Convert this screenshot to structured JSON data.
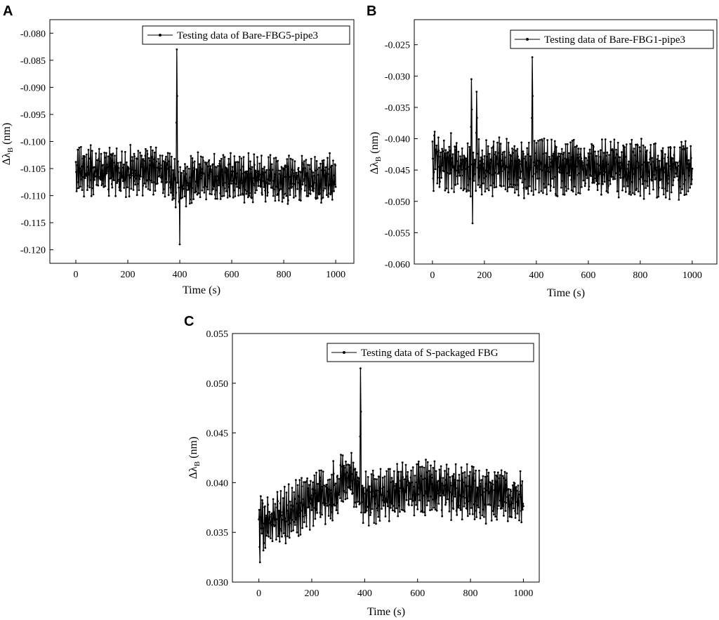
{
  "panels": [
    {
      "letter": "A",
      "legend": "Testing data of Bare-FBG5-pipe3",
      "xlabel": "Time (s)",
      "ylabel_prefix": "Δλ",
      "ylabel_sub": "B",
      "ylabel_suffix": " (nm)"
    },
    {
      "letter": "B",
      "legend": "Testing data of Bare-FBG1-pipe3",
      "xlabel": "Time (s)",
      "ylabel_prefix": "Δλ",
      "ylabel_sub": "B",
      "ylabel_suffix": " (nm)"
    },
    {
      "letter": "C",
      "legend": "Testing data of S-packaged FBG",
      "xlabel": "Time (s)",
      "ylabel_prefix": "Δλ",
      "ylabel_sub": "B",
      "ylabel_suffix": " (nm)"
    }
  ],
  "chart_data": [
    {
      "type": "line",
      "panel": "A",
      "title": "",
      "xlabel": "Time (s)",
      "ylabel": "ΔλB (nm)",
      "xlim": [
        -100,
        1070
      ],
      "ylim": [
        -0.1225,
        -0.0775
      ],
      "xticks": [
        "0",
        "200",
        "400",
        "600",
        "800",
        "1000"
      ],
      "xtick_values": [
        0,
        200,
        400,
        600,
        800,
        1000
      ],
      "yticks": [
        "-0.080",
        "-0.085",
        "-0.090",
        "-0.095",
        "-0.100",
        "-0.105",
        "-0.110",
        "-0.115",
        "-0.120"
      ],
      "ytick_values": [
        -0.08,
        -0.085,
        -0.09,
        -0.095,
        -0.1,
        -0.105,
        -0.11,
        -0.115,
        -0.12
      ],
      "legend_position": "top-right",
      "grid": false,
      "color": "#000000",
      "series": [
        {
          "name": "Testing data of Bare-FBG5-pipe3",
          "x_range": [
            0,
            1000
          ],
          "baseline": -0.1055,
          "amplitude": 0.0045,
          "envelope": [
            [
              0,
              0.0
            ],
            [
              330,
              0.0
            ],
            [
              400,
              -0.0025
            ],
            [
              480,
              -0.001
            ],
            [
              1000,
              -0.0015
            ]
          ],
          "spike": {
            "x": 388,
            "y": -0.083
          },
          "min_point": {
            "x": 400,
            "y": -0.119
          }
        }
      ]
    },
    {
      "type": "line",
      "panel": "B",
      "title": "",
      "xlabel": "Time (s)",
      "ylabel": "ΔλB (nm)",
      "xlim": [
        -70,
        1095
      ],
      "ylim": [
        -0.06,
        -0.021
      ],
      "xticks": [
        "0",
        "200",
        "400",
        "600",
        "800",
        "1000"
      ],
      "xtick_values": [
        0,
        200,
        400,
        600,
        800,
        1000
      ],
      "yticks": [
        "-0.025",
        "-0.030",
        "-0.035",
        "-0.040",
        "-0.045",
        "-0.050",
        "-0.055",
        "-0.060"
      ],
      "ytick_values": [
        -0.025,
        -0.03,
        -0.035,
        -0.04,
        -0.045,
        -0.05,
        -0.055,
        -0.06
      ],
      "legend_position": "top-right",
      "grid": false,
      "color": "#000000",
      "series": [
        {
          "name": "Testing data of Bare-FBG1-pipe3",
          "x_range": [
            0,
            1000
          ],
          "baseline": -0.0445,
          "amplitude": 0.0045,
          "envelope": [
            [
              0,
              0.001
            ],
            [
              180,
              0.0
            ],
            [
              1000,
              -0.0005
            ]
          ],
          "spikes": [
            {
              "x": 150,
              "y": -0.0305
            },
            {
              "x": 170,
              "y": -0.0325
            },
            {
              "x": 385,
              "y": -0.027
            }
          ],
          "min_point": {
            "x": 155,
            "y": -0.0535
          }
        }
      ]
    },
    {
      "type": "line",
      "panel": "C",
      "title": "",
      "xlabel": "Time (s)",
      "ylabel": "ΔλB (nm)",
      "xlim": [
        -100,
        1060
      ],
      "ylim": [
        0.03,
        0.055
      ],
      "xticks": [
        "0",
        "200",
        "400",
        "600",
        "800",
        "1000"
      ],
      "xtick_values": [
        0,
        200,
        400,
        600,
        800,
        1000
      ],
      "yticks": [
        "0.055",
        "0.050",
        "0.045",
        "0.040",
        "0.035",
        "0.030"
      ],
      "ytick_values": [
        0.055,
        0.05,
        0.045,
        0.04,
        0.035,
        0.03
      ],
      "legend_position": "top-right",
      "grid": false,
      "color": "#000000",
      "series": [
        {
          "name": "Testing data of S-packaged FBG",
          "x_range": [
            0,
            1000
          ],
          "baseline_trend": [
            [
              0,
              0.0355
            ],
            [
              300,
              0.0395
            ],
            [
              330,
              0.041
            ],
            [
              400,
              0.0385
            ],
            [
              600,
              0.0395
            ],
            [
              1000,
              0.0385
            ]
          ],
          "amplitude": 0.0028,
          "spike": {
            "x": 385,
            "y": 0.0515
          },
          "min_point": {
            "x": 5,
            "y": 0.032
          }
        }
      ]
    }
  ]
}
